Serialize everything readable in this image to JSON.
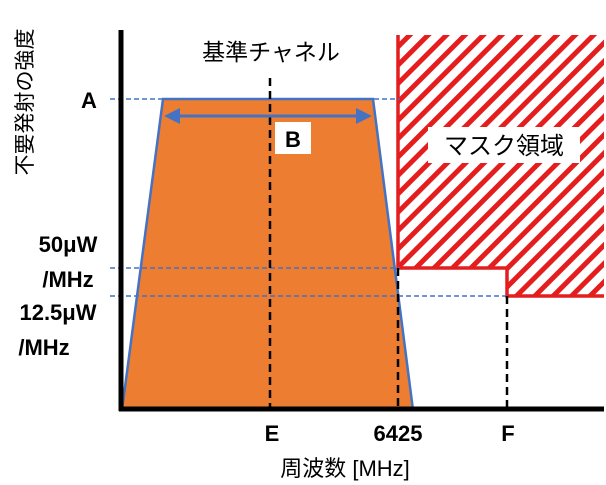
{
  "title": "基準チャネル",
  "ylabel": "不要発射の強度",
  "xlabel": "周波数 [MHz]",
  "mask_label": "マスク領域",
  "bandwidth_label": "B",
  "level_labels": {
    "a": "A",
    "p50_line1": "50μW",
    "p50_line2": "/MHz",
    "p125_line1": "12.5μW",
    "p125_line2": "/MHz"
  },
  "x_ticks": {
    "center": "E",
    "edge": "6425",
    "f": "F"
  },
  "colors": {
    "channel_fill": "#ED7D31",
    "channel_outline": "#4472C4",
    "mask": "#E41E1E",
    "guide": "#4472C4",
    "axis": "#000000"
  }
}
